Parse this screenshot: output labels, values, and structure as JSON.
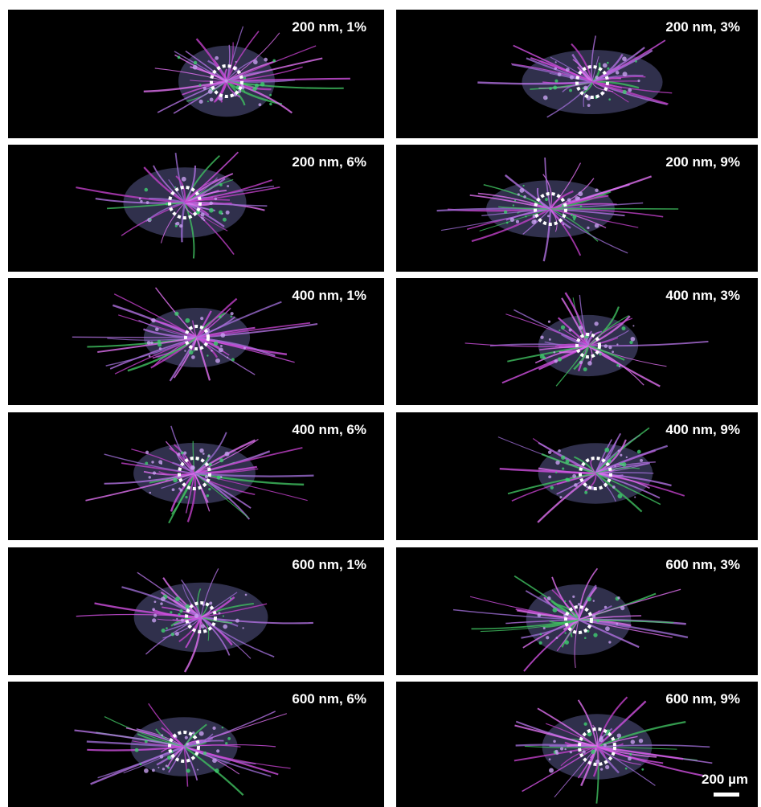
{
  "panels": [
    {
      "label": "200 nm, 1%"
    },
    {
      "label": "200 nm, 3%"
    },
    {
      "label": "200 nm, 6%"
    },
    {
      "label": "200 nm, 9%"
    },
    {
      "label": "400 nm, 1%"
    },
    {
      "label": "400 nm, 3%"
    },
    {
      "label": "400 nm, 6%"
    },
    {
      "label": "400 nm, 9%"
    },
    {
      "label": "600 nm, 1%"
    },
    {
      "label": "600 nm, 3%"
    },
    {
      "label": "600 nm, 6%"
    },
    {
      "label": "600 nm, 9%"
    }
  ],
  "scale_bar": {
    "label": "200 µm"
  }
}
